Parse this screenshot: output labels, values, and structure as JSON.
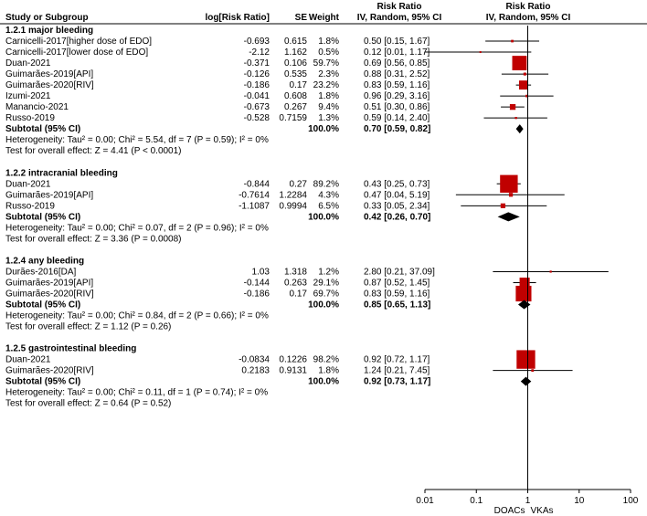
{
  "chart_data": {
    "type": "forest",
    "header": {
      "study": "Study or Subgroup",
      "log_rr": "log[Risk Ratio]",
      "se": "SE",
      "weight": "Weight",
      "rr_top": "Risk Ratio",
      "rr_sub": "IV, Random, 95% CI",
      "plot_top": "Risk Ratio",
      "plot_sub": "IV, Random, 95% CI"
    },
    "groups": [
      {
        "title": "1.2.1 major bleeding",
        "studies": [
          {
            "name": "Carnicelli-2017[higher dose of EDO]",
            "log_rr": "-0.693",
            "se": "0.615",
            "weight": "1.8%",
            "ci_text": "0.50 [0.15, 1.67]",
            "rr": 0.5,
            "lo": 0.15,
            "hi": 1.67,
            "w": 1.8
          },
          {
            "name": "Carnicelli-2017[lower dose of EDO]",
            "log_rr": "-2.12",
            "se": "1.162",
            "weight": "0.5%",
            "ci_text": "0.12 [0.01, 1.17]",
            "rr": 0.12,
            "lo": 0.01,
            "hi": 1.17,
            "w": 0.5
          },
          {
            "name": "Duan-2021",
            "log_rr": "-0.371",
            "se": "0.106",
            "weight": "59.7%",
            "ci_text": "0.69 [0.56, 0.85]",
            "rr": 0.69,
            "lo": 0.56,
            "hi": 0.85,
            "w": 59.7
          },
          {
            "name": "Guimarães-2019[API]",
            "log_rr": "-0.126",
            "se": "0.535",
            "weight": "2.3%",
            "ci_text": "0.88 [0.31, 2.52]",
            "rr": 0.88,
            "lo": 0.31,
            "hi": 2.52,
            "w": 2.3
          },
          {
            "name": "Guimarães-2020[RIV]",
            "log_rr": "-0.186",
            "se": "0.17",
            "weight": "23.2%",
            "ci_text": "0.83 [0.59, 1.16]",
            "rr": 0.83,
            "lo": 0.59,
            "hi": 1.16,
            "w": 23.2
          },
          {
            "name": "Izumi-2021",
            "log_rr": "-0.041",
            "se": "0.608",
            "weight": "1.8%",
            "ci_text": "0.96 [0.29, 3.16]",
            "rr": 0.96,
            "lo": 0.29,
            "hi": 3.16,
            "w": 1.8
          },
          {
            "name": "Manancio-2021",
            "log_rr": "-0.673",
            "se": "0.267",
            "weight": "9.4%",
            "ci_text": "0.51 [0.30, 0.86]",
            "rr": 0.51,
            "lo": 0.3,
            "hi": 0.86,
            "w": 9.4
          },
          {
            "name": "Russo-2019",
            "log_rr": "-0.528",
            "se": "0.7159",
            "weight": "1.3%",
            "ci_text": "0.59 [0.14, 2.40]",
            "rr": 0.59,
            "lo": 0.14,
            "hi": 2.4,
            "w": 1.3
          }
        ],
        "subtotal": {
          "label": "Subtotal (95% CI)",
          "weight": "100.0%",
          "ci_text": "0.70 [0.59, 0.82]",
          "rr": 0.7,
          "lo": 0.59,
          "hi": 0.82
        },
        "heterogeneity": "Heterogeneity: Tau² = 0.00; Chi² = 5.54, df = 7 (P = 0.59); I² = 0%",
        "overall": "Test for overall effect: Z = 4.41 (P < 0.0001)"
      },
      {
        "title": "1.2.2 intracranial bleeding",
        "studies": [
          {
            "name": "Duan-2021",
            "log_rr": "-0.844",
            "se": "0.27",
            "weight": "89.2%",
            "ci_text": "0.43 [0.25, 0.73]",
            "rr": 0.43,
            "lo": 0.25,
            "hi": 0.73,
            "w": 89.2
          },
          {
            "name": "Guimarães-2019[API]",
            "log_rr": "-0.7614",
            "se": "1.2284",
            "weight": "4.3%",
            "ci_text": "0.47 [0.04, 5.19]",
            "rr": 0.47,
            "lo": 0.04,
            "hi": 5.19,
            "w": 4.3
          },
          {
            "name": "Russo-2019",
            "log_rr": "-1.1087",
            "se": "0.9994",
            "weight": "6.5%",
            "ci_text": "0.33 [0.05, 2.34]",
            "rr": 0.33,
            "lo": 0.05,
            "hi": 2.34,
            "w": 6.5
          }
        ],
        "subtotal": {
          "label": "Subtotal (95% CI)",
          "weight": "100.0%",
          "ci_text": "0.42 [0.26, 0.70]",
          "rr": 0.42,
          "lo": 0.26,
          "hi": 0.7
        },
        "heterogeneity": "Heterogeneity: Tau² = 0.00; Chi² = 0.07, df = 2 (P = 0.96); I² = 0%",
        "overall": "Test for overall effect: Z = 3.36 (P = 0.0008)"
      },
      {
        "title": "1.2.4 any bleeding",
        "studies": [
          {
            "name": "Durães-2016[DA]",
            "log_rr": "1.03",
            "se": "1.318",
            "weight": "1.2%",
            "ci_text": "2.80 [0.21, 37.09]",
            "rr": 2.8,
            "lo": 0.21,
            "hi": 37.09,
            "w": 1.2
          },
          {
            "name": "Guimarães-2019[API]",
            "log_rr": "-0.144",
            "se": "0.263",
            "weight": "29.1%",
            "ci_text": "0.87 [0.52, 1.45]",
            "rr": 0.87,
            "lo": 0.52,
            "hi": 1.45,
            "w": 29.1
          },
          {
            "name": "Guimarães-2020[RIV]",
            "log_rr": "-0.186",
            "se": "0.17",
            "weight": "69.7%",
            "ci_text": "0.83 [0.59, 1.16]",
            "rr": 0.83,
            "lo": 0.59,
            "hi": 1.16,
            "w": 69.7
          }
        ],
        "subtotal": {
          "label": "Subtotal (95% CI)",
          "weight": "100.0%",
          "ci_text": "0.85 [0.65, 1.13]",
          "rr": 0.85,
          "lo": 0.65,
          "hi": 1.13
        },
        "heterogeneity": "Heterogeneity: Tau² = 0.00; Chi² = 0.84, df = 2 (P = 0.66); I² = 0%",
        "overall": "Test for overall effect: Z = 1.12 (P = 0.26)"
      },
      {
        "title": "1.2.5 gastrointestinal bleeding",
        "studies": [
          {
            "name": "Duan-2021",
            "log_rr": "-0.0834",
            "se": "0.1226",
            "weight": "98.2%",
            "ci_text": "0.92 [0.72, 1.17]",
            "rr": 0.92,
            "lo": 0.72,
            "hi": 1.17,
            "w": 98.2
          },
          {
            "name": "Guimarães-2020[RIV]",
            "log_rr": "0.2183",
            "se": "0.9131",
            "weight": "1.8%",
            "ci_text": "1.24 [0.21, 7.45]",
            "rr": 1.24,
            "lo": 0.21,
            "hi": 7.45,
            "w": 1.8
          }
        ],
        "subtotal": {
          "label": "Subtotal (95% CI)",
          "weight": "100.0%",
          "ci_text": "0.92 [0.73, 1.17]",
          "rr": 0.92,
          "lo": 0.73,
          "hi": 1.17
        },
        "heterogeneity": "Heterogeneity: Tau² = 0.00; Chi² = 0.11, df = 1 (P = 0.74); I² = 0%",
        "overall": "Test for overall effect: Z = 0.64 (P = 0.52)"
      }
    ],
    "x_axis": {
      "scale": "log",
      "xlim": [
        0.01,
        100
      ],
      "ticks": [
        0.01,
        0.1,
        1,
        10,
        100
      ],
      "tick_labels": [
        "0.01",
        "0.1",
        "1",
        "10",
        "100"
      ],
      "label_left": "DOACs",
      "label_right": "VKAs"
    },
    "colors": {
      "study_box": "#c00000",
      "summary_diamond": "#000000",
      "lines": "#000000"
    }
  }
}
